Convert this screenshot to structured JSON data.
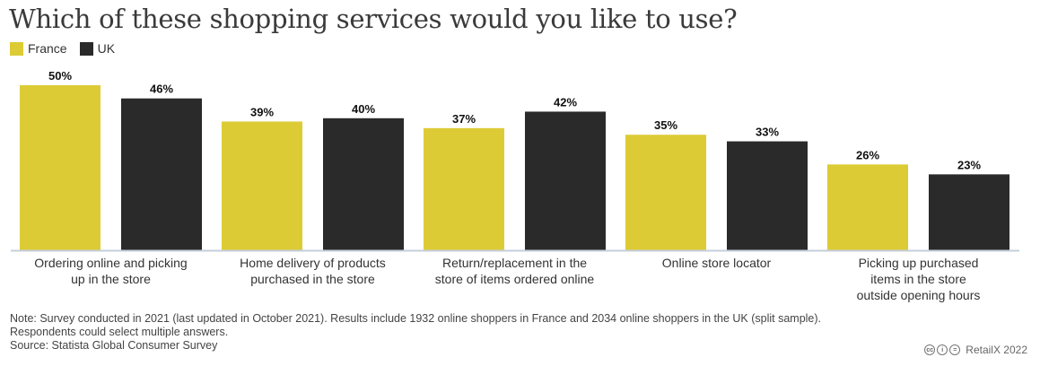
{
  "title": "Which of these shopping services would you like to use?",
  "colors": {
    "France": "#ddcb36",
    "UK": "#2a2a2a",
    "baseline": "#c5cedb"
  },
  "chart_data": {
    "type": "bar",
    "title": "Which of these shopping services would you like to use?",
    "categories": [
      [
        "Ordering online and picking",
        "up in the store"
      ],
      [
        "Home delivery of products",
        "purchased in the store"
      ],
      [
        "Return/replacement in the",
        "store of items ordered online"
      ],
      [
        "Online store locator"
      ],
      [
        "Picking up purchased",
        "items in the store",
        "outside opening hours"
      ]
    ],
    "series": [
      {
        "name": "France",
        "values": [
          50,
          39,
          37,
          35,
          26
        ],
        "labels": [
          "50%",
          "39%",
          "37%",
          "35%",
          "26%"
        ]
      },
      {
        "name": "UK",
        "values": [
          46,
          40,
          42,
          33,
          23
        ],
        "labels": [
          "46%",
          "40%",
          "42%",
          "33%",
          "23%"
        ]
      }
    ],
    "ylim": [
      0,
      50
    ],
    "grid": false,
    "legend": "top-left"
  },
  "notes": [
    "Note: Survey conducted in 2021 (last updated in October 2021). Results include 1932 online shoppers in France and 2034 online shoppers in the UK (split sample).",
    "Respondents could select multiple answers.",
    "Source: Statista Global Consumer Survey"
  ],
  "credit": {
    "icons": [
      "cc-icon",
      "by-icon",
      "equals-icon"
    ],
    "icon_glyphs": [
      "cc",
      "i",
      "="
    ],
    "text": "RetailX 2022"
  }
}
